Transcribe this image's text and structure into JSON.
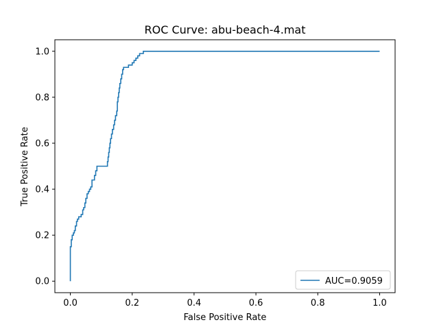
{
  "chart_data": {
    "type": "line",
    "title": "ROC Curve: abu-beach-4.mat",
    "xlabel": "False Positive Rate",
    "ylabel": "True Positive Rate",
    "xlim": [
      -0.05,
      1.05
    ],
    "ylim": [
      -0.05,
      1.05
    ],
    "x_ticks": [
      "0.0",
      "0.2",
      "0.4",
      "0.6",
      "0.8",
      "1.0"
    ],
    "y_ticks": [
      "0.0",
      "0.2",
      "0.4",
      "0.6",
      "0.8",
      "1.0"
    ],
    "grid": false,
    "legend": {
      "position": "lower-right"
    },
    "series": [
      {
        "name": "AUC=0.9059",
        "color": "#1f77b4",
        "x": [
          0,
          0,
          0.003,
          0.006,
          0.01,
          0.013,
          0.016,
          0.02,
          0.023,
          0.027,
          0.03,
          0.035,
          0.04,
          0.043,
          0.047,
          0.05,
          0.054,
          0.058,
          0.062,
          0.066,
          0.07,
          0.074,
          0.078,
          0.082,
          0.086,
          0.09,
          0.095,
          0.1,
          0.106,
          0.112,
          0.118,
          0.12,
          0.122,
          0.124,
          0.126,
          0.128,
          0.13,
          0.133,
          0.136,
          0.14,
          0.143,
          0.146,
          0.15,
          0.152,
          0.154,
          0.156,
          0.158,
          0.16,
          0.163,
          0.166,
          0.169,
          0.172,
          0.175,
          0.178,
          0.182,
          0.188,
          0.194,
          0.2,
          0.206,
          0.212,
          0.218,
          0.224,
          0.23,
          0.236,
          0.5,
          0.75,
          1.0
        ],
        "y": [
          0,
          0.15,
          0.18,
          0.2,
          0.21,
          0.22,
          0.24,
          0.26,
          0.27,
          0.28,
          0.28,
          0.29,
          0.31,
          0.32,
          0.34,
          0.36,
          0.38,
          0.39,
          0.4,
          0.41,
          0.44,
          0.44,
          0.46,
          0.48,
          0.5,
          0.5,
          0.5,
          0.5,
          0.5,
          0.5,
          0.5,
          0.52,
          0.54,
          0.56,
          0.58,
          0.6,
          0.62,
          0.64,
          0.66,
          0.68,
          0.7,
          0.72,
          0.74,
          0.78,
          0.8,
          0.82,
          0.84,
          0.86,
          0.88,
          0.9,
          0.92,
          0.93,
          0.93,
          0.93,
          0.93,
          0.94,
          0.94,
          0.95,
          0.96,
          0.97,
          0.98,
          0.99,
          0.99,
          1.0,
          1.0,
          1.0,
          1.0
        ]
      }
    ]
  }
}
